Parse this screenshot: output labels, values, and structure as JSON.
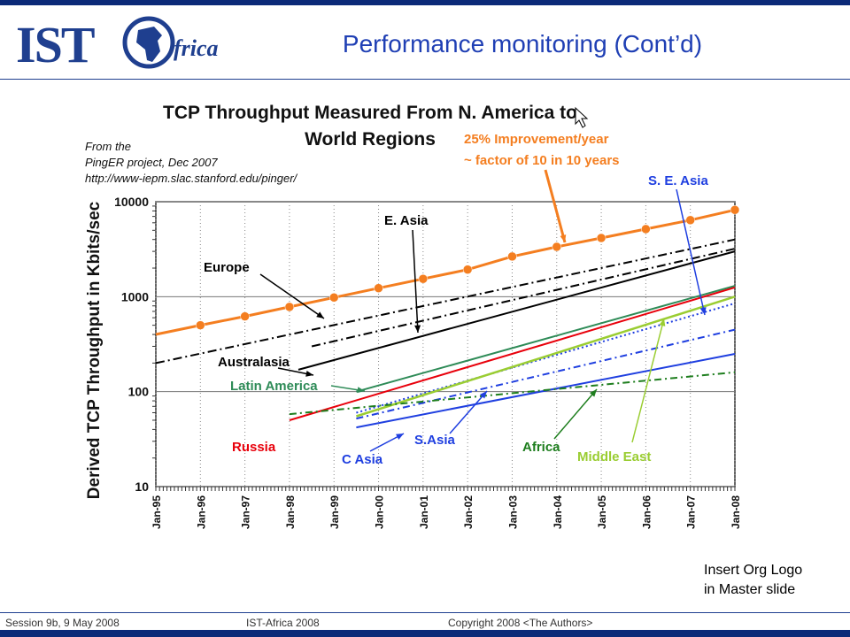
{
  "header": {
    "logo_text": "IST",
    "logo_suffix": "frica",
    "title": "Performance monitoring (Cont’d)"
  },
  "footer": {
    "session": "Session 9b, 9 May 2008",
    "event": "IST-Africa 2008",
    "copyright": "Copyright 2008 <The Authors>"
  },
  "insert_logo": {
    "line1": "Insert Org Logo",
    "line2": "in Master slide"
  },
  "chart_data": {
    "type": "line",
    "title_line1": "TCP Throughput Measured From N. America to",
    "title_line2": "World Regions",
    "ylabel": "Derived TCP Throughput in Kbits/sec",
    "xlabel": "",
    "y_scale": "log",
    "ylim": [
      10,
      10000
    ],
    "y_ticks": [
      "10",
      "100",
      "1000",
      "10000"
    ],
    "x_ticks": [
      "Jan-95",
      "Jan-96",
      "Jan-97",
      "Jan-98",
      "Jan-99",
      "Jan-00",
      "Jan-01",
      "Jan-02",
      "Jan-03",
      "Jan-04",
      "Jan-05",
      "Jan-06",
      "Jan-07",
      "Jan-08"
    ],
    "source_note": [
      "From the",
      "PingER project, Dec 2007",
      "http://www-iepm.slac.stanford.edu/pinger/"
    ],
    "improvement_note": [
      "25% Improvement/year",
      "~ factor of 10 in 10 years"
    ],
    "colors": {
      "trend": "#f47e20",
      "europe": "#000000",
      "easia": "#000000",
      "australasia": "#000000",
      "latin": "#2e8b57",
      "russia": "#e8000b",
      "seasia": "#1f3fe0",
      "middleeast": "#9acd32",
      "casia": "#1f3fe0",
      "sasia": "#1f3fe0",
      "africa": "#1e7e1e"
    },
    "series": [
      {
        "key": "trend",
        "x": [
          1995,
          1996,
          1997,
          1998,
          1999,
          2000,
          2001,
          2002,
          2003,
          2004,
          2005,
          2006,
          2007,
          2008
        ],
        "values": [
          400,
          500,
          620,
          780,
          980,
          1230,
          1540,
          1930,
          2650,
          3350,
          4150,
          5150,
          6400,
          8200
        ]
      },
      {
        "key": "europe",
        "x": [
          1995,
          2008
        ],
        "values": [
          200,
          4000
        ]
      },
      {
        "key": "easia",
        "x": [
          1998.5,
          2008
        ],
        "values": [
          300,
          3200
        ]
      },
      {
        "key": "australasia",
        "x": [
          1998.2,
          2008
        ],
        "values": [
          170,
          3000
        ]
      },
      {
        "key": "latin",
        "x": [
          1999.5,
          2008
        ],
        "values": [
          100,
          1300
        ]
      },
      {
        "key": "russia",
        "x": [
          1998,
          2008
        ],
        "values": [
          50,
          1250
        ]
      },
      {
        "key": "seasia",
        "x": [
          1999.5,
          2008
        ],
        "values": [
          60,
          850
        ]
      },
      {
        "key": "middleeast",
        "x": [
          1999.5,
          2008
        ],
        "values": [
          55,
          1000
        ]
      },
      {
        "key": "casia",
        "x": [
          1999.5,
          2008
        ],
        "values": [
          52,
          450
        ]
      },
      {
        "key": "sasia",
        "x": [
          1999.5,
          2008
        ],
        "values": [
          42,
          250
        ]
      },
      {
        "key": "africa",
        "x": [
          1998,
          2008
        ],
        "values": [
          58,
          160
        ]
      }
    ],
    "annotations": [
      {
        "key": "trend",
        "label": "25% Improvement/year"
      },
      {
        "key": "europe",
        "label": "Europe"
      },
      {
        "key": "easia",
        "label": "E. Asia"
      },
      {
        "key": "australasia",
        "label": "Australasia"
      },
      {
        "key": "latin",
        "label": "Latin America"
      },
      {
        "key": "russia",
        "label": "Russia"
      },
      {
        "key": "seasia",
        "label": "S. E. Asia"
      },
      {
        "key": "middleeast",
        "label": "Middle East"
      },
      {
        "key": "casia",
        "label": "C Asia"
      },
      {
        "key": "sasia",
        "label": "S.Asia"
      },
      {
        "key": "africa",
        "label": "Africa"
      }
    ]
  }
}
